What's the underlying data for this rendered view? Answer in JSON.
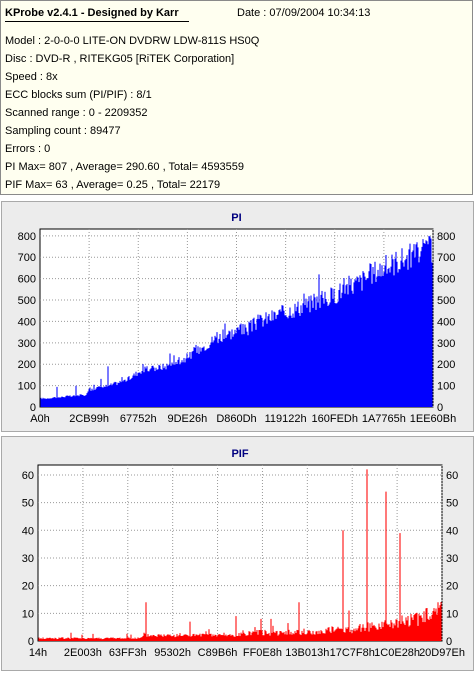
{
  "header": {
    "app_title": "KProbe v2.4.1 - Designed by Karr",
    "date_label": "Date : 07/09/2004 10:34:13"
  },
  "info_lines": [
    "Model : 2-0-0-0 LITE-ON DVDRW LDW-811S   HS0Q",
    "Disc : DVD-R , RITEKG05 [RiTEK Corporation]",
    "Speed : 8x",
    "ECC blocks sum (PI/PIF) : 8/1",
    "Scanned range : 0 - 2209352",
    "Sampling count : 89477",
    "Errors : 0",
    "PI Max= 807 , Average= 290.60 , Total= 4593559",
    "PIF Max= 63 , Average= 0.25 , Total= 22179"
  ],
  "colors": {
    "pi_series": "#0000ff",
    "pif_series": "#ff0000",
    "plot_bg": "#ffffff",
    "panel_bg": "#ececec",
    "info_bg": "#fffff0",
    "title_text": "#000080"
  },
  "chart_data": [
    {
      "type": "area",
      "title": "PI",
      "ylim": [
        0,
        800
      ],
      "y_ticks": [
        0,
        100,
        200,
        300,
        400,
        500,
        600,
        700,
        800
      ],
      "x_tick_labels": [
        "A0h",
        "2CB99h",
        "67752h",
        "9DE26h",
        "D860Dh",
        "119122h",
        "160FEDh",
        "1A7765h",
        "1EE60Bh"
      ],
      "grid": true,
      "series": [
        {
          "color": "#0000ff",
          "x_range": [
            0,
            2209352
          ],
          "values": [
            40,
            40,
            45,
            45,
            50,
            50,
            55,
            55,
            80,
            90,
            95,
            100,
            110,
            120,
            130,
            150,
            170,
            175,
            180,
            185,
            190,
            200,
            210,
            225,
            240,
            260,
            280,
            300,
            320,
            330,
            340,
            350,
            360,
            360,
            380,
            400,
            410,
            420,
            430,
            440,
            450,
            460,
            470,
            480,
            490,
            500,
            510,
            520,
            540,
            560,
            570,
            580,
            600,
            620,
            640,
            650,
            660,
            680,
            690,
            700,
            710,
            720,
            730,
            740
          ],
          "spikes": [
            [
              0.17,
              190
            ],
            [
              0.33,
              250
            ],
            [
              0.39,
              280
            ],
            [
              0.45,
              350
            ],
            [
              0.47,
              390
            ],
            [
              0.51,
              390
            ],
            [
              0.62,
              450
            ],
            [
              0.67,
              530
            ],
            [
              0.71,
              620
            ],
            [
              0.77,
              560
            ],
            [
              0.86,
              610
            ],
            [
              0.92,
              700
            ],
            [
              0.96,
              770
            ],
            [
              0.99,
              800
            ]
          ]
        }
      ]
    },
    {
      "type": "bar",
      "title": "PIF",
      "ylim": [
        0,
        60
      ],
      "y_ticks": [
        0,
        10,
        20,
        30,
        40,
        50,
        60
      ],
      "x_tick_labels": [
        "14h",
        "2E003h",
        "63FF3h",
        "95302h",
        "C89B6h",
        "FF0E8h",
        "13B013h",
        "17C7F8h",
        "1C0E28h",
        "20D97Eh"
      ],
      "grid": true,
      "series": [
        {
          "color": "#ff0000",
          "x_range": [
            0,
            2209352
          ],
          "baseline": [
            1,
            1,
            1,
            1,
            1,
            1,
            1,
            1,
            1,
            1,
            1,
            1,
            1,
            1,
            1,
            1,
            1,
            1,
            1,
            1,
            1,
            1,
            1,
            1,
            1,
            1,
            2,
            2,
            2,
            2,
            2,
            2,
            2,
            2,
            2,
            2,
            2,
            2,
            2,
            2,
            2,
            2,
            2,
            2,
            2,
            2,
            2,
            2,
            2,
            2,
            3,
            3,
            3,
            3,
            3,
            3,
            3,
            3,
            3,
            3,
            3,
            3,
            3,
            3,
            3,
            3,
            3,
            3,
            3,
            3,
            4,
            4,
            4,
            4,
            4,
            4,
            4,
            4,
            5,
            5,
            5,
            5,
            5,
            5,
            6,
            6,
            6,
            7,
            7,
            7,
            7,
            8,
            8,
            8,
            9,
            9,
            9,
            10,
            10,
            11
          ],
          "spikes": [
            [
              0.03,
              1
            ],
            [
              0.08,
              3
            ],
            [
              0.17,
              1
            ],
            [
              0.26,
              3
            ],
            [
              0.265,
              14
            ],
            [
              0.37,
              2
            ],
            [
              0.375,
              7
            ],
            [
              0.46,
              3
            ],
            [
              0.49,
              9
            ],
            [
              0.55,
              8
            ],
            [
              0.575,
              8
            ],
            [
              0.64,
              4
            ],
            [
              0.645,
              14
            ],
            [
              0.72,
              5
            ],
            [
              0.755,
              40
            ],
            [
              0.77,
              11
            ],
            [
              0.815,
              62
            ],
            [
              0.86,
              54
            ],
            [
              0.895,
              39
            ],
            [
              0.96,
              6
            ],
            [
              0.99,
              14
            ]
          ]
        }
      ]
    }
  ]
}
